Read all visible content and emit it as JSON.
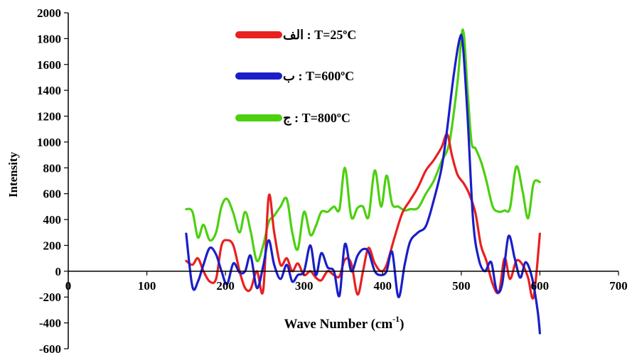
{
  "chart_data": {
    "type": "line",
    "title": "",
    "xlabel": "Wave Number (cm",
    "xlabel_sup": "-1",
    "xlabel_suffix": ")",
    "ylabel": "Intensity",
    "xlim": [
      0,
      700
    ],
    "ylim": [
      -600,
      2000
    ],
    "x_ticks": [
      0,
      100,
      200,
      300,
      400,
      500,
      600,
      700
    ],
    "x_tick_labels": [
      "0",
      "100",
      "200",
      "300",
      "400",
      "500",
      "600",
      "700"
    ],
    "y_ticks": [
      2000,
      1800,
      1600,
      1400,
      1200,
      1000,
      800,
      600,
      400,
      200,
      0,
      -200,
      -400,
      -600
    ],
    "y_tick_labels": [
      "2000",
      "1800",
      "1600",
      "1400",
      "1200",
      "1000",
      "800",
      "600",
      "400",
      "200",
      "0",
      "-200",
      "-400",
      "-600"
    ],
    "grid": false,
    "legend_position": "top-center",
    "series": [
      {
        "name": "الف : T=25ºC",
        "color": "#e8201f",
        "x": [
          150,
          158,
          165,
          172,
          180,
          188,
          195,
          202,
          210,
          218,
          225,
          232,
          240,
          248,
          255,
          262,
          270,
          278,
          285,
          292,
          300,
          308,
          315,
          322,
          330,
          338,
          345,
          352,
          360,
          368,
          375,
          382,
          390,
          398,
          405,
          415,
          425,
          435,
          445,
          455,
          465,
          475,
          482,
          488,
          495,
          503,
          510,
          518,
          525,
          532,
          540,
          548,
          555,
          562,
          570,
          578,
          585,
          592,
          600
        ],
        "y": [
          80,
          50,
          100,
          0,
          -80,
          -60,
          200,
          240,
          200,
          0,
          -130,
          -140,
          0,
          -150,
          580,
          300,
          50,
          100,
          0,
          60,
          -30,
          0,
          -50,
          -70,
          0,
          -30,
          -40,
          90,
          60,
          -180,
          0,
          180,
          60,
          0,
          50,
          260,
          450,
          550,
          650,
          780,
          860,
          960,
          1060,
          900,
          750,
          680,
          600,
          450,
          200,
          80,
          -100,
          -160,
          100,
          -60,
          80,
          50,
          -50,
          -200,
          290
        ]
      },
      {
        "name": "ب : T=600ºC",
        "color": "#1a1ec8",
        "x": [
          150,
          158,
          165,
          172,
          180,
          188,
          195,
          202,
          210,
          218,
          225,
          232,
          240,
          248,
          255,
          262,
          270,
          278,
          285,
          292,
          300,
          308,
          315,
          322,
          330,
          338,
          345,
          352,
          360,
          368,
          375,
          382,
          390,
          398,
          405,
          412,
          420,
          428,
          435,
          445,
          455,
          465,
          475,
          482,
          490,
          498,
          502,
          508,
          515,
          522,
          530,
          538,
          545,
          552,
          560,
          568,
          575,
          582,
          590,
          597,
          600
        ],
        "y": [
          290,
          -120,
          -80,
          50,
          180,
          130,
          0,
          -100,
          60,
          -10,
          0,
          120,
          -130,
          40,
          240,
          50,
          -60,
          50,
          -80,
          -30,
          0,
          200,
          -30,
          140,
          30,
          0,
          -190,
          210,
          0,
          120,
          170,
          150,
          0,
          -30,
          0,
          150,
          -200,
          50,
          230,
          300,
          350,
          550,
          800,
          1100,
          1500,
          1800,
          1750,
          1200,
          400,
          100,
          0,
          70,
          -150,
          -100,
          270,
          100,
          -50,
          70,
          -50,
          -300,
          -480
        ]
      },
      {
        "name": "ج : T=800ºC",
        "color": "#4cd010",
        "x": [
          150,
          158,
          165,
          172,
          180,
          188,
          195,
          202,
          210,
          218,
          225,
          232,
          240,
          248,
          255,
          262,
          270,
          278,
          285,
          292,
          300,
          308,
          315,
          322,
          330,
          338,
          345,
          352,
          360,
          368,
          375,
          382,
          390,
          398,
          405,
          412,
          420,
          428,
          435,
          445,
          455,
          465,
          475,
          485,
          495,
          502,
          508,
          513,
          518,
          525,
          532,
          540,
          548,
          555,
          562,
          570,
          578,
          585,
          592,
          600
        ],
        "y": [
          480,
          460,
          260,
          360,
          240,
          300,
          500,
          560,
          450,
          300,
          460,
          310,
          80,
          200,
          380,
          430,
          500,
          560,
          300,
          170,
          460,
          280,
          350,
          460,
          460,
          500,
          480,
          800,
          420,
          490,
          500,
          420,
          780,
          500,
          740,
          520,
          500,
          470,
          480,
          490,
          600,
          700,
          850,
          1000,
          1450,
          1870,
          1400,
          1000,
          950,
          850,
          700,
          500,
          460,
          470,
          490,
          810,
          620,
          410,
          680,
          690
        ]
      }
    ]
  }
}
